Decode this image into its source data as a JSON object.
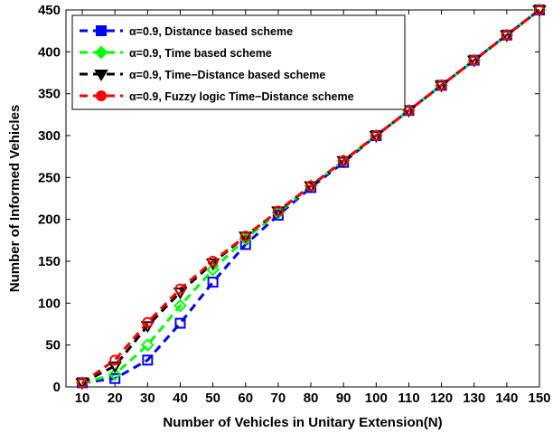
{
  "chart_data": {
    "type": "line",
    "xlabel": "Number of Vehicles in Unitary Extension(N)",
    "ylabel": "Number of Informed Vehicles",
    "x": [
      10,
      20,
      30,
      40,
      50,
      60,
      70,
      80,
      90,
      100,
      110,
      120,
      130,
      140,
      150
    ],
    "xlim": [
      5,
      150
    ],
    "ylim": [
      0,
      450
    ],
    "xticks": [
      "10",
      "20",
      "30",
      "40",
      "50",
      "60",
      "70",
      "80",
      "90",
      "100",
      "110",
      "120",
      "130",
      "140",
      "150"
    ],
    "yticks": [
      "0",
      "50",
      "100",
      "150",
      "200",
      "250",
      "300",
      "350",
      "400",
      "450"
    ],
    "grid": false,
    "legend_position": "top-left",
    "series": [
      {
        "name": "α=0.9, Distance based scheme",
        "color": "#0000ff",
        "marker": "square",
        "values": [
          5,
          10,
          32,
          76,
          125,
          170,
          205,
          238,
          268,
          300,
          330,
          360,
          390,
          420,
          450
        ]
      },
      {
        "name": "α=0.9, Time based scheme",
        "color": "#00ff00",
        "marker": "diamond",
        "values": [
          5,
          15,
          50,
          97,
          140,
          177,
          208,
          240,
          270,
          300,
          330,
          360,
          390,
          420,
          450
        ]
      },
      {
        "name": "α=0.9, Time−Distance based scheme",
        "color": "#000000",
        "marker": "triangle-down",
        "values": [
          5,
          25,
          73,
          113,
          148,
          180,
          210,
          240,
          270,
          300,
          330,
          360,
          390,
          420,
          450
        ]
      },
      {
        "name": "α=0.9, Fuzzy logic Time−Distance scheme",
        "color": "#ff0000",
        "marker": "circle",
        "values": [
          5,
          32,
          77,
          117,
          150,
          180,
          210,
          240,
          270,
          300,
          330,
          360,
          390,
          420,
          450
        ]
      }
    ]
  }
}
